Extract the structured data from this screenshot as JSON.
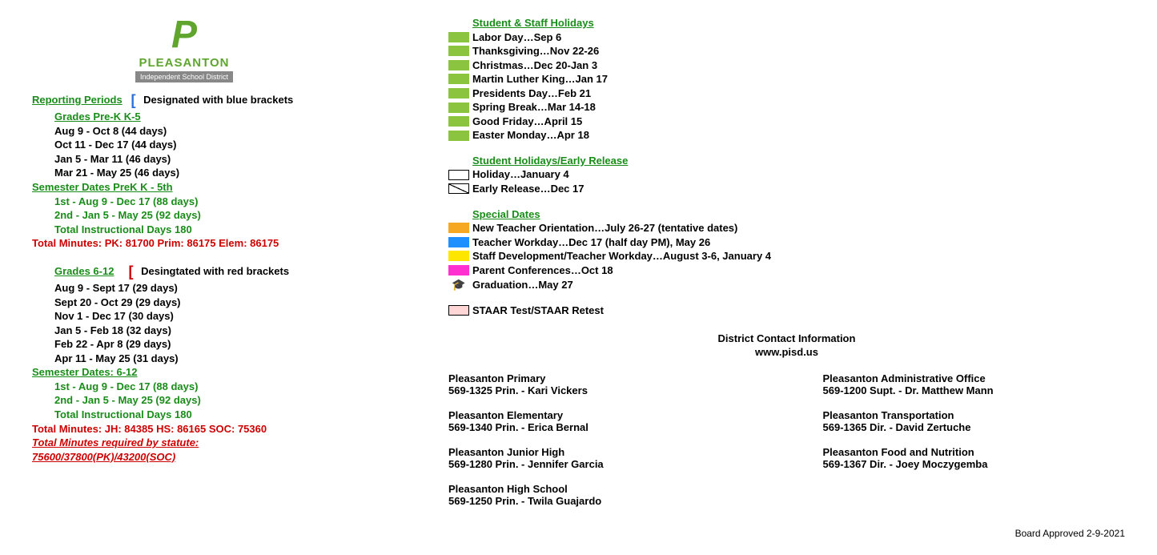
{
  "logo": {
    "letter": "P",
    "name": "PLEASANTON",
    "sub": "Independent School District"
  },
  "reporting": {
    "title": "Reporting Periods",
    "note_blue": "Designated with blue brackets",
    "grades_prek_k5": "Grades Pre-K K-5",
    "prek_periods": [
      "Aug 9 - Oct 8 (44 days)",
      "Oct 11 - Dec 17 (44 days)",
      "Jan 5 - Mar 11 (46 days)",
      "Mar 21 - May 25 (46 days)"
    ],
    "sem_prek_title": "Semester Dates PreK K - 5th",
    "sem_prek": [
      "1st - Aug 9 - Dec 17 (88 days)",
      "2nd - Jan 5 - May 25 (92 days)",
      "Total Instructional Days 180"
    ],
    "total_min_elem": "Total Minutes:  PK: 81700  Prim: 86175  Elem: 86175",
    "grades_612": "Grades 6-12",
    "note_red": "Desingtated with red brackets",
    "g612_periods": [
      "Aug 9 - Sept 17 (29 days)",
      "Sept 20 - Oct 29 (29 days)",
      "Nov 1 - Dec 17 (30 days)",
      "Jan 5 - Feb 18 (32 days)",
      "Feb 22 - Apr 8 (29 days)",
      "Apr 11 - May 25 (31 days)"
    ],
    "sem_612_title": "Semester Dates: 6-12",
    "sem_612": [
      "1st - Aug 9 - Dec 17 (88 days)",
      "2nd - Jan 5 - May 25 (92 days)",
      "Total Instructional Days 180"
    ],
    "total_min_sec": "Total Minutes:  JH: 84385   HS: 86165   SOC: 75360",
    "statute": "Total Minutes required by statute: 75600/37800(PK)/43200(SOC)"
  },
  "holidays": {
    "title": "Student & Staff Holidays",
    "color": "#8bc53f",
    "items": [
      "Labor Day…Sep 6",
      "Thanksgiving…Nov 22-26",
      "Christmas…Dec 20-Jan 3",
      "Martin Luther King…Jan 17",
      "Presidents Day…Feb 21",
      "Spring Break…Mar 14-18",
      "Good Friday…April 15",
      "Easter Monday…Apr 18"
    ]
  },
  "early": {
    "title": "Student Holidays/Early Release",
    "items": [
      {
        "label": "Holiday…January 4",
        "kind": "box"
      },
      {
        "label": "Early Release…Dec 17",
        "kind": "diag"
      }
    ]
  },
  "special": {
    "title": "Special Dates",
    "items": [
      {
        "label": "New Teacher Orientation…July 26-27 (tentative dates)",
        "color": "#f7a823"
      },
      {
        "label": "Teacher Workday…Dec 17 (half day PM), May 26",
        "color": "#1e90ff"
      },
      {
        "label": "Staff Development/Teacher Workday…August 3-6, January 4",
        "color": "#ffe600"
      },
      {
        "label": "Parent Conferences…Oct 18",
        "color": "#ff2fd0"
      },
      {
        "label": "Graduation…May 27",
        "color": "grad"
      }
    ],
    "staar": {
      "label": "STAAR Test/STAAR Retest",
      "color": "#ffd6d6"
    }
  },
  "contact": {
    "title": "District Contact Information",
    "url": "www.pisd.us",
    "left": [
      {
        "name": "Pleasanton Primary",
        "line": "569-1325  Prin. - Kari Vickers"
      },
      {
        "name": "Pleasanton Elementary",
        "line": "569-1340  Prin. - Erica Bernal"
      },
      {
        "name": "Pleasanton Junior High",
        "line": "569-1280  Prin. -  Jennifer Garcia"
      },
      {
        "name": "Pleasanton High School",
        "line": "569-1250  Prin. -  Twila Guajardo"
      }
    ],
    "right": [
      {
        "name": "Pleasanton Administrative Office",
        "line": "569-1200   Supt. -  Dr. Matthew Mann"
      },
      {
        "name": "Pleasanton Transportation",
        "line": "569-1365  Dir. -  David Zertuche"
      },
      {
        "name": "Pleasanton Food and Nutrition",
        "line": "569-1367  Dir. -  Joey Moczygemba"
      }
    ]
  },
  "approved": "Board Approved 2-9-2021"
}
